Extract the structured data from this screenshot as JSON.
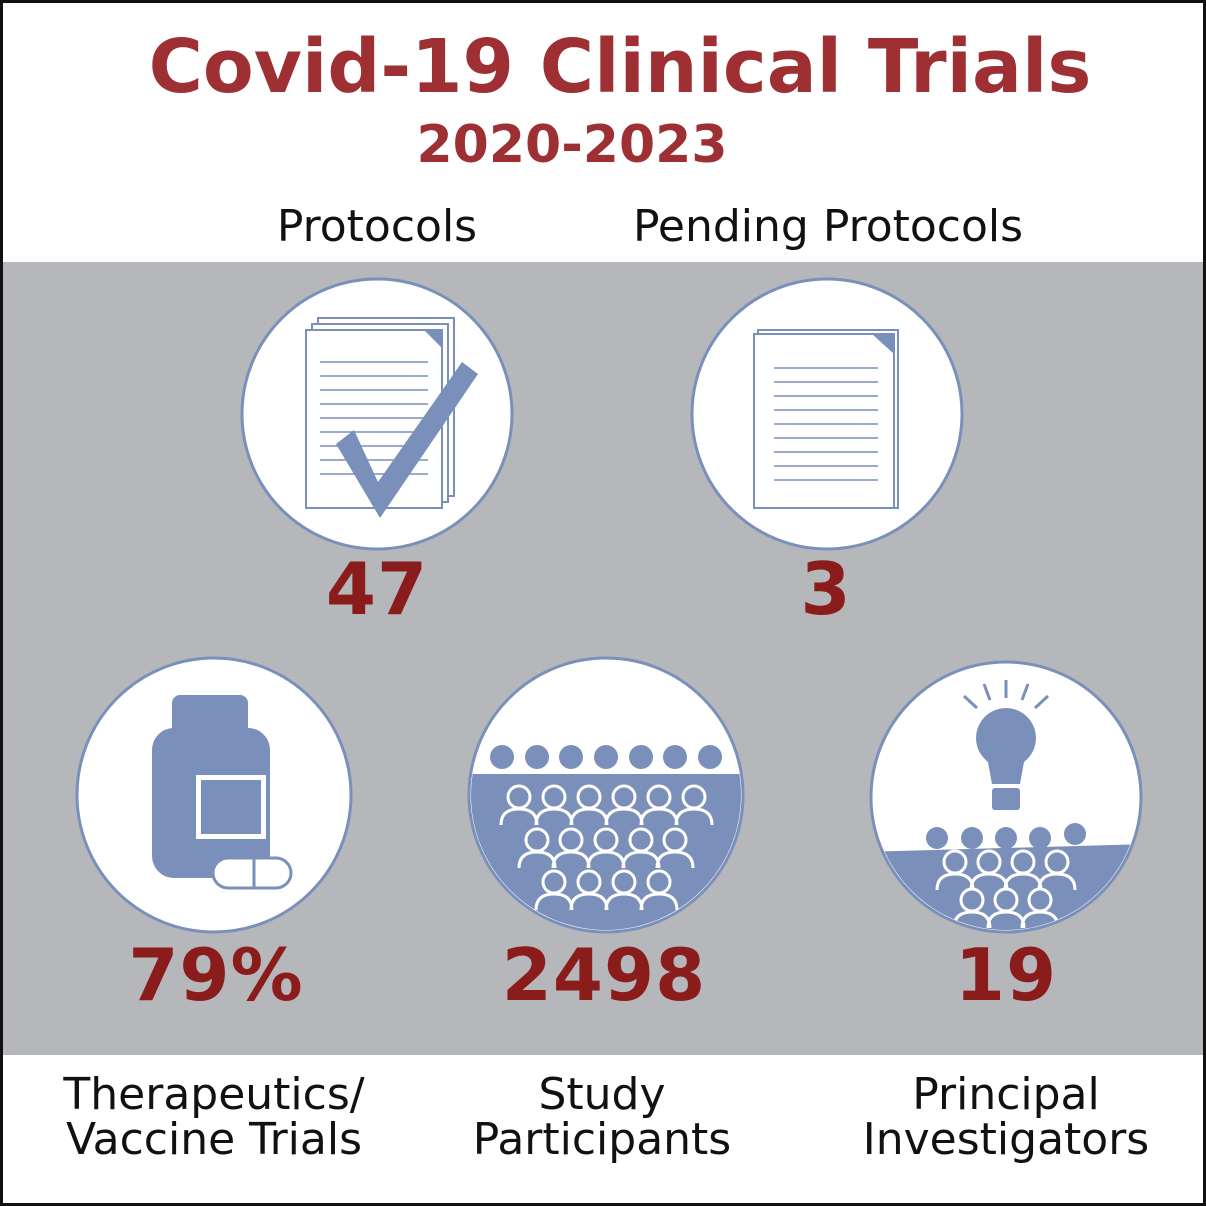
{
  "title": "Covid-19 Clinical Trials",
  "subtitle": "2020-2023",
  "stats": [
    {
      "label": [
        "Protocols"
      ],
      "value": "47"
    },
    {
      "label": [
        "Pending Protocols"
      ],
      "value": "3"
    },
    {
      "label": [
        "Therapeutics/",
        "Vaccine Trials"
      ],
      "value": "79%"
    },
    {
      "label": [
        "Study",
        "Participants"
      ],
      "value": "2498"
    },
    {
      "label": [
        "Principal",
        "Investigators"
      ],
      "value": "19"
    }
  ]
}
